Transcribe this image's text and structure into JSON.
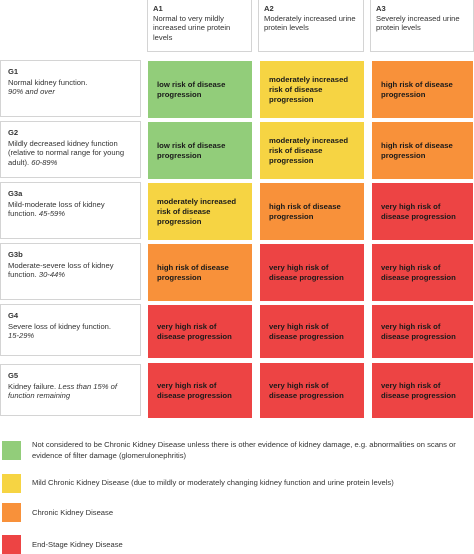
{
  "colors": {
    "green": "#92cd7a",
    "yellow": "#f6d443",
    "orange": "#f8913a",
    "red": "#ed4444"
  },
  "columns": [
    {
      "code": "A1",
      "desc": "Normal to very mildly increased urine protein levels"
    },
    {
      "code": "A2",
      "desc": "Moderately increased urine protein levels"
    },
    {
      "code": "A3",
      "desc": "Severely increased urine protein levels"
    }
  ],
  "rows": [
    {
      "code": "G1",
      "desc": "Normal kidney function.",
      "pct": "90% and over",
      "cells": [
        {
          "text": "low risk of disease progression",
          "level": "green"
        },
        {
          "text": "moderately increased risk of disease progression",
          "level": "yellow"
        },
        {
          "text": "high risk of disease progression",
          "level": "orange"
        }
      ]
    },
    {
      "code": "G2",
      "desc": "Mildly decreased kidney function (relative to normal range for young adult).",
      "pct": "60-89%",
      "cells": [
        {
          "text": "low risk of disease progression",
          "level": "green"
        },
        {
          "text": "moderately increased risk of disease progression",
          "level": "yellow"
        },
        {
          "text": "high risk of disease progression",
          "level": "orange"
        }
      ]
    },
    {
      "code": "G3a",
      "desc": "Mild-moderate  loss of kidney function.",
      "pct": "45-59%",
      "cells": [
        {
          "text": "moderately increased risk of disease progression",
          "level": "yellow"
        },
        {
          "text": "high risk of disease progression",
          "level": "orange"
        },
        {
          "text": "very high risk of disease progression",
          "level": "red"
        }
      ]
    },
    {
      "code": "G3b",
      "desc": "Moderate-severe loss of kidney function.",
      "pct": "30-44%",
      "cells": [
        {
          "text": "high risk of disease progression",
          "level": "orange"
        },
        {
          "text": "very high risk of disease progression",
          "level": "red"
        },
        {
          "text": "very high risk of disease progression",
          "level": "red"
        }
      ]
    },
    {
      "code": "G4",
      "desc": "Severe loss of kidney function.",
      "pct": "15-29%",
      "cells": [
        {
          "text": "very high risk of disease progression",
          "level": "red"
        },
        {
          "text": "very high risk of disease progression",
          "level": "red"
        },
        {
          "text": "very high risk of disease progression",
          "level": "red"
        }
      ]
    },
    {
      "code": "G5",
      "desc": "Kidney failure.",
      "pct": "Less than 15% of function remaining",
      "cells": [
        {
          "text": "very high risk of disease progression",
          "level": "red"
        },
        {
          "text": "very high risk of disease progression",
          "level": "red"
        },
        {
          "text": "very high risk of disease progression",
          "level": "red"
        }
      ]
    }
  ],
  "legend": [
    {
      "level": "green",
      "text": "Not considered to be Chronic Kidney Disease unless there is other evidence of kidney damage, e.g. abnormalities on scans or evidence of filter damage (glomerulonephritis)"
    },
    {
      "level": "yellow",
      "text": "Mild Chronic Kidney Disease (due to mildly or moderately changing kidney function and urine protein levels)"
    },
    {
      "level": "orange",
      "text": "Chronic  Kidney Disease"
    },
    {
      "level": "red",
      "text": "End-Stage Kidney Disease"
    }
  ]
}
